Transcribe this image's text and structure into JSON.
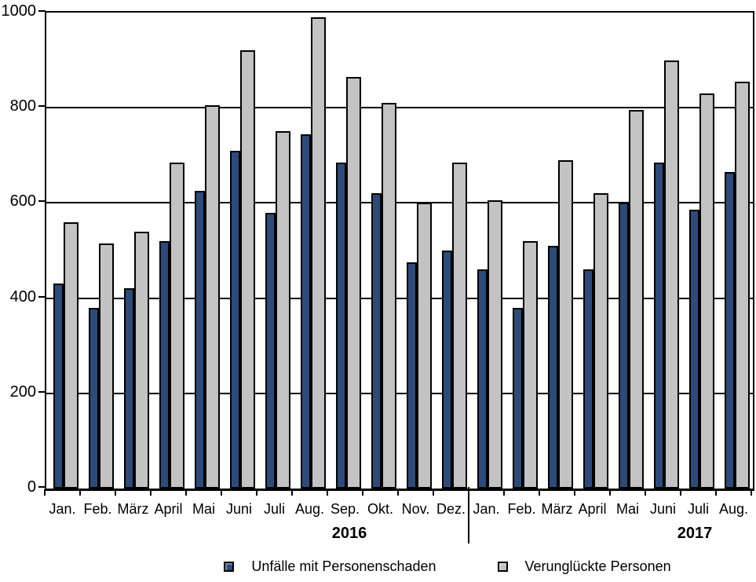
{
  "chart_data": {
    "type": "bar",
    "title": "",
    "categories": [
      "Jan.",
      "Feb.",
      "März",
      "April",
      "Mai",
      "Juni",
      "Juli",
      "Aug.",
      "Sep.",
      "Okt.",
      "Nov.",
      "Dez.",
      "Jan.",
      "Feb.",
      "März",
      "April",
      "Mai",
      "Juni",
      "Juli",
      "Aug."
    ],
    "year_groups": [
      {
        "label": "2016",
        "from_index": 0,
        "to_index": 11
      },
      {
        "label": "2017",
        "from_index": 12,
        "to_index": 19
      }
    ],
    "series": [
      {
        "name": "Unfälle mit Personenschaden",
        "color": "#2D4B7A",
        "values": [
          430,
          380,
          420,
          520,
          625,
          710,
          580,
          745,
          685,
          620,
          475,
          500,
          460,
          380,
          510,
          460,
          600,
          685,
          585,
          665
        ]
      },
      {
        "name": "Verunglückte Personen",
        "color": "#C3C3C3",
        "values": [
          560,
          515,
          540,
          685,
          805,
          920,
          750,
          990,
          865,
          810,
          600,
          685,
          605,
          520,
          690,
          620,
          795,
          900,
          830,
          855
        ]
      }
    ],
    "y_axis": {
      "min": 0,
      "max": 1000,
      "step": 200,
      "tick_labels_top_to_bottom": [
        "1000",
        "800",
        "600",
        "400",
        "200",
        "0"
      ]
    },
    "grid": "horizontal-on",
    "legend_position": "bottom",
    "bar_outline_color": "#000000",
    "background_color": "#FFFFFF"
  },
  "legend": {
    "items": [
      {
        "label": "Unfälle mit Personenschaden",
        "color": "#2D4B7A"
      },
      {
        "label": "Verunglückte Personen",
        "color": "#C3C3C3"
      }
    ]
  }
}
